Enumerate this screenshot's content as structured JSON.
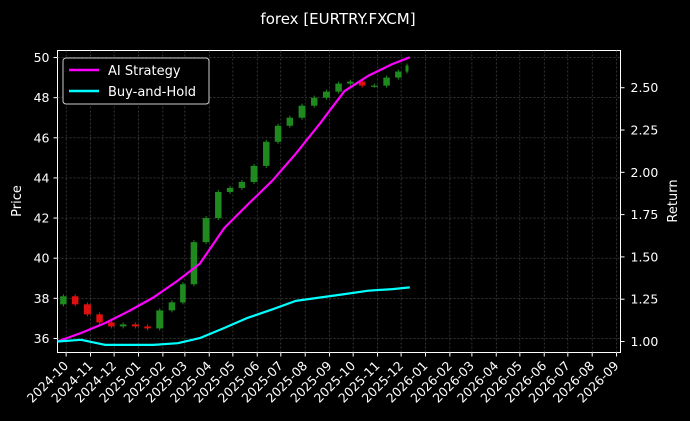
{
  "chart_data": {
    "type": "line",
    "title": "forex [EURTRY.FXCM]",
    "ylabel": "Price",
    "y2label": "Return",
    "ylim": [
      35.3,
      50.35
    ],
    "y2lim": [
      0.935,
      2.72
    ],
    "yticks": [
      36,
      38,
      40,
      42,
      44,
      46,
      48,
      50
    ],
    "y2ticks": [
      "1.00",
      "1.25",
      "1.50",
      "1.75",
      "2.00",
      "2.25",
      "2.50"
    ],
    "y2tick_values": [
      1.0,
      1.25,
      1.5,
      1.75,
      2.0,
      2.25,
      2.5
    ],
    "xlim": [
      "2024-09-20",
      "2026-09-06"
    ],
    "xticks": [
      "2024-10",
      "2024-11",
      "2024-12",
      "2025-01",
      "2025-02",
      "2025-03",
      "2025-04",
      "2025-05",
      "2025-06",
      "2025-07",
      "2025-08",
      "2025-09",
      "2025-10",
      "2025-11",
      "2025-12",
      "2026-01",
      "2026-02",
      "2026-03",
      "2026-04",
      "2026-05",
      "2026-06",
      "2026-07",
      "2026-08",
      "2026-09"
    ],
    "grid": true,
    "legend_position": "upper-left",
    "background": "#000000",
    "colors": {
      "up": "#1f8a1f",
      "down": "#e01010",
      "strategy": "#ff00ff",
      "hold": "#00ffff",
      "grid": "#555555",
      "text": "#ffffff"
    },
    "price_candles": {
      "axis": "left",
      "x": [
        "2024-09-20",
        "2024-10-05",
        "2024-10-20",
        "2024-11-05",
        "2024-11-20",
        "2024-12-05",
        "2024-12-20",
        "2025-01-05",
        "2025-01-20",
        "2025-02-05",
        "2025-02-20",
        "2025-03-05",
        "2025-03-20",
        "2025-04-05",
        "2025-04-20",
        "2025-05-05",
        "2025-05-20",
        "2025-06-05",
        "2025-06-20",
        "2025-07-05",
        "2025-07-20",
        "2025-08-05",
        "2025-08-20",
        "2025-09-05",
        "2025-09-20",
        "2025-10-05",
        "2025-10-20",
        "2025-11-05",
        "2025-11-20",
        "2025-12-05",
        "2025-12-12"
      ],
      "close": [
        37.7,
        38.1,
        37.7,
        37.2,
        36.8,
        36.6,
        36.7,
        36.6,
        36.5,
        37.4,
        37.8,
        38.7,
        40.8,
        42.0,
        43.3,
        43.5,
        43.8,
        44.6,
        45.8,
        46.6,
        47.0,
        47.6,
        48.0,
        48.3,
        48.7,
        48.8,
        48.6,
        48.6,
        49.0,
        49.3,
        49.6
      ]
    },
    "series": [
      {
        "name": "AI Strategy",
        "axis": "right",
        "x": [
          "2024-09-20",
          "2024-10-20",
          "2024-11-20",
          "2024-12-20",
          "2025-01-20",
          "2025-02-20",
          "2025-03-20",
          "2025-04-20",
          "2025-05-20",
          "2025-06-20",
          "2025-07-20",
          "2025-08-20",
          "2025-09-20",
          "2025-10-20",
          "2025-11-20",
          "2025-12-12"
        ],
        "values": [
          1.0,
          1.05,
          1.11,
          1.18,
          1.26,
          1.36,
          1.46,
          1.67,
          1.81,
          1.95,
          2.11,
          2.29,
          2.48,
          2.57,
          2.64,
          2.68
        ]
      },
      {
        "name": "Buy-and-Hold",
        "axis": "right",
        "x": [
          "2024-09-20",
          "2024-10-20",
          "2024-11-20",
          "2024-12-20",
          "2025-01-20",
          "2025-02-20",
          "2025-03-20",
          "2025-04-20",
          "2025-05-20",
          "2025-06-20",
          "2025-07-20",
          "2025-08-20",
          "2025-09-20",
          "2025-10-20",
          "2025-11-20",
          "2025-12-12"
        ],
        "values": [
          1.0,
          1.01,
          0.98,
          0.98,
          0.98,
          0.99,
          1.02,
          1.08,
          1.14,
          1.19,
          1.24,
          1.26,
          1.28,
          1.3,
          1.31,
          1.32
        ]
      }
    ]
  }
}
